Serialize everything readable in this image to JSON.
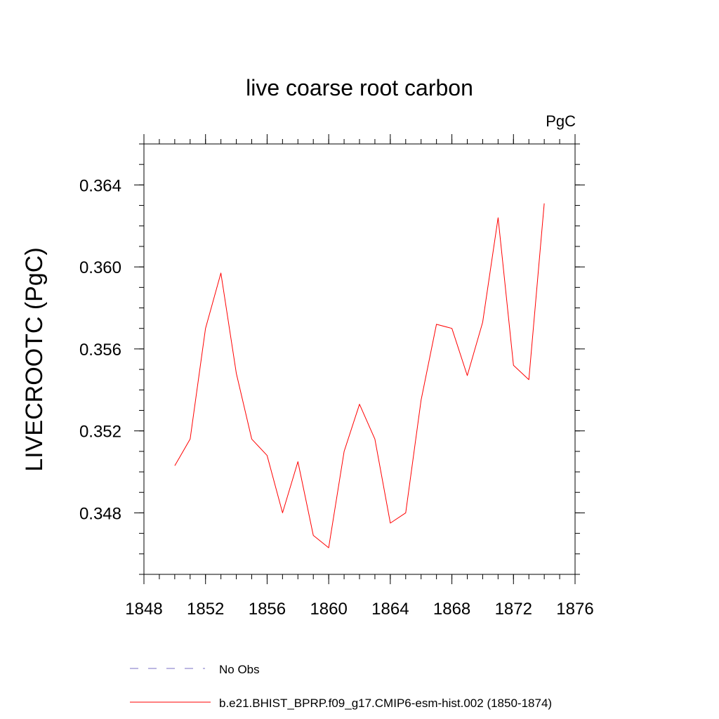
{
  "chart_data": {
    "type": "line",
    "title": "live coarse root carbon",
    "units_label": "PgC",
    "xlabel": "",
    "ylabel": "LIVECROOTC  (PgC)",
    "xlim": [
      1848,
      1876
    ],
    "ylim": [
      0.345,
      0.366
    ],
    "x_major_ticks": [
      1848,
      1852,
      1856,
      1860,
      1864,
      1868,
      1872,
      1876
    ],
    "x_tick_labels": [
      "1848",
      "1852",
      "1856",
      "1860",
      "1864",
      "1868",
      "1872",
      "1876"
    ],
    "x_minor_step": 1,
    "y_major_ticks": [
      0.348,
      0.352,
      0.356,
      0.36,
      0.364
    ],
    "y_tick_labels": [
      "0.348",
      "0.352",
      "0.356",
      "0.360",
      "0.364"
    ],
    "y_minor_step": 0.001,
    "grid": false,
    "legend_position": "bottom",
    "series": [
      {
        "name": "b.e21.BHIST_BPRP.f09_g17.CMIP6-esm-hist.002 (1850-1874)",
        "color": "#ff0000",
        "style": "solid",
        "x": [
          1850,
          1851,
          1852,
          1853,
          1854,
          1855,
          1856,
          1857,
          1858,
          1859,
          1860,
          1861,
          1862,
          1863,
          1864,
          1865,
          1866,
          1867,
          1868,
          1869,
          1870,
          1871,
          1872,
          1873,
          1874
        ],
        "values": [
          0.3503,
          0.3516,
          0.357,
          0.3597,
          0.3548,
          0.3516,
          0.3508,
          0.348,
          0.3505,
          0.3469,
          0.3463,
          0.351,
          0.3533,
          0.3516,
          0.3475,
          0.348,
          0.3535,
          0.3572,
          0.357,
          0.3547,
          0.3573,
          0.3624,
          0.3552,
          0.3545,
          0.3631
        ]
      }
    ],
    "legend": [
      {
        "label": "No Obs",
        "color": "#7a6fc4",
        "style": "dashed"
      },
      {
        "label": "b.e21.BHIST_BPRP.f09_g17.CMIP6-esm-hist.002 (1850-1874)",
        "color": "#ff0000",
        "style": "solid"
      }
    ]
  }
}
